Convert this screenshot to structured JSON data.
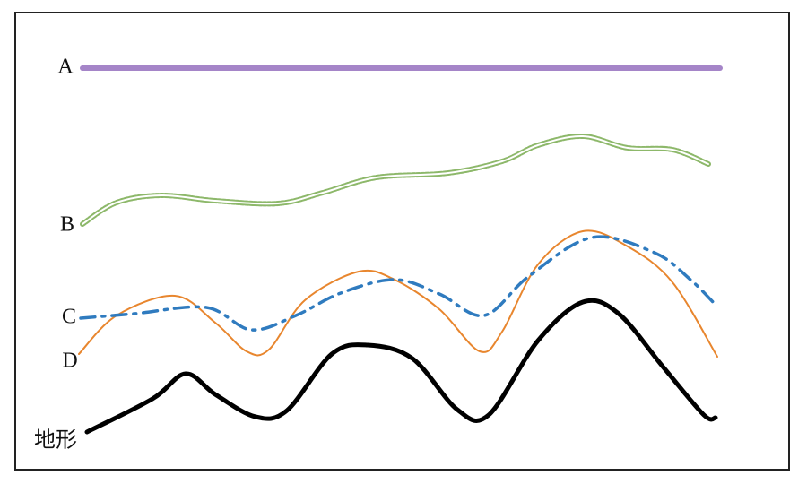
{
  "labels": [
    "A",
    "B",
    "C",
    "D",
    "地形"
  ]
}
